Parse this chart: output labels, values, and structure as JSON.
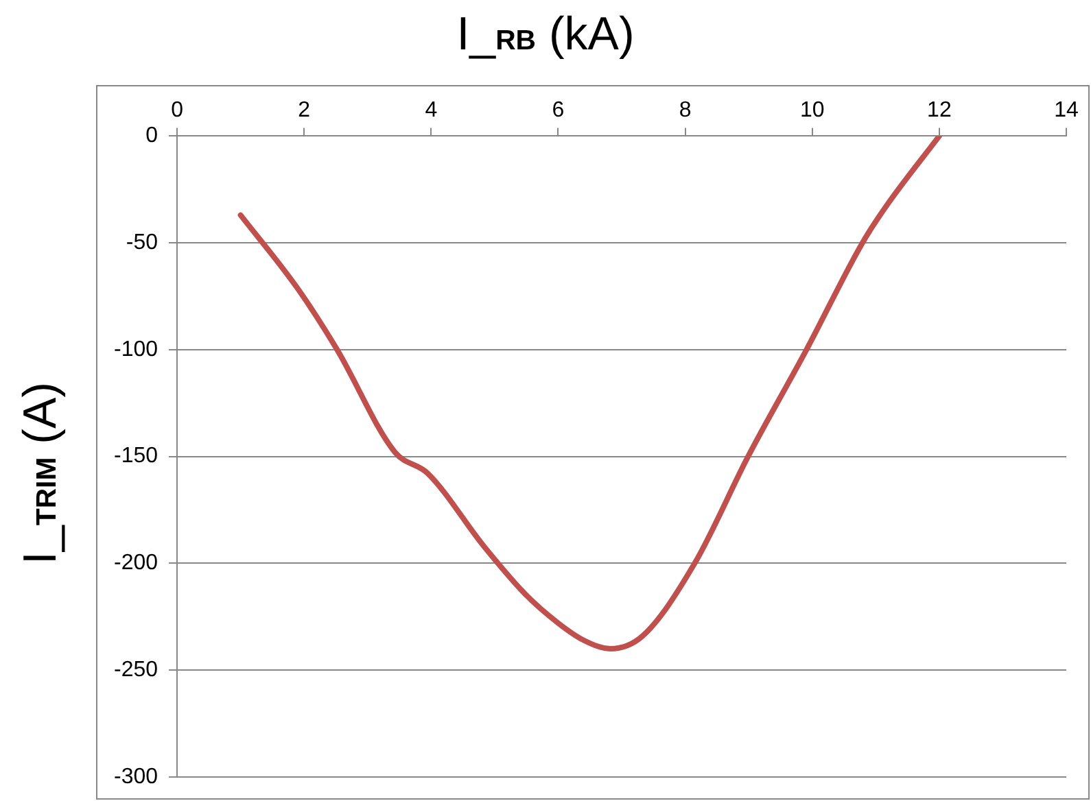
{
  "chart_data": {
    "type": "line",
    "xlabel": "I_$_{RB}$ (kA)",
    "ylabel": "I_$_{TRIM}$ (A)",
    "series": [
      {
        "color": "#c0504d",
        "x": [
          1.0,
          1.89,
          2.52,
          3.43,
          3.95,
          4.83,
          5.5,
          6.0,
          6.4,
          6.82,
          7.33,
          8.15,
          8.99,
          9.91,
          10.79,
          11.16,
          12.0
        ],
        "values": [
          -37,
          -71,
          -100,
          -148,
          -158,
          -192,
          -215,
          -228,
          -236,
          -240,
          -234,
          -200,
          -150,
          -100,
          -50,
          -33,
          0
        ]
      }
    ],
    "xlim": [
      0,
      14
    ],
    "xticks": [
      0,
      2,
      4,
      6,
      8,
      10,
      12,
      14
    ],
    "ylim": [
      -300,
      0
    ],
    "yticks": [
      -300,
      -250,
      -200,
      -150,
      -100,
      -50,
      0
    ],
    "grid": "y",
    "legend": false,
    "marker": "none",
    "line_style": "solid"
  }
}
